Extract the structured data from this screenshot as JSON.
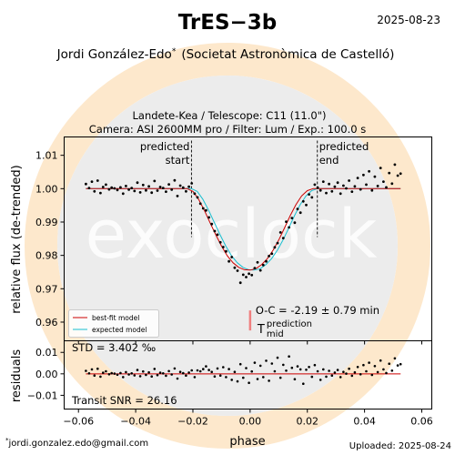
{
  "header": {
    "title": "TrES−3b",
    "date": "2025-08-23",
    "author": "Jordi González-Edo",
    "author_mark": "*",
    "affiliation": "(Societat Astronòmica de Castelló)"
  },
  "observation": {
    "line1": "Landete-Kea / Telescope: C11 (11.0\")",
    "line2": "Camera: ASI 2600MM pro / Filter: Lum / Exp.: 100.0 s"
  },
  "footer": {
    "email_mark": "*",
    "email": "jordi.gonzalez.edo@gmail.com",
    "uploaded": "Uploaded: 2025-08-24"
  },
  "watermark": {
    "text": "exoclock",
    "color": "#fde6c4"
  },
  "colors": {
    "data": "#000000",
    "best_fit": "#cc0000",
    "expected": "#17becf",
    "prediction_bar": "#f08080",
    "residual_line": "#cc0000",
    "watermark_disc": "#eeeeee"
  },
  "chart_data": [
    {
      "type": "scatter",
      "name": "light-curve",
      "ylabel": "relative flux (de-trended)",
      "xlim": [
        -0.065,
        0.0635
      ],
      "ylim": [
        0.9544,
        1.0155
      ],
      "xticks": [
        -0.06,
        -0.04,
        -0.02,
        0.0,
        0.02,
        0.04,
        0.06
      ],
      "yticks": [
        0.96,
        0.97,
        0.98,
        0.99,
        1.0,
        1.01
      ],
      "ytick_labels": [
        "0.96",
        "0.97",
        "0.98",
        "0.99",
        "1.00",
        "1.01"
      ],
      "grid": false,
      "legend": {
        "placement": "bottom-left",
        "entries": [
          "best-fit model",
          "expected model"
        ]
      },
      "predicted_start": {
        "x": -0.0205,
        "label_line1": "predicted",
        "label_line2": "start"
      },
      "predicted_end": {
        "x": 0.0235,
        "label_line1": "predicted",
        "label_line2": "end"
      },
      "prediction_marker": {
        "x": 0.0,
        "y_range": [
          0.9575,
          0.9635
        ]
      },
      "oc_annotation": "O-C = -2.19 ± 0.79 min",
      "tmid_label": "T",
      "tmid_sup": "prediction",
      "tmid_sub": "mid",
      "x": [
        -0.0574,
        -0.0563,
        -0.0553,
        -0.0544,
        -0.0533,
        -0.0523,
        -0.0514,
        -0.0504,
        -0.0493,
        -0.0484,
        -0.0474,
        -0.0464,
        -0.0453,
        -0.0444,
        -0.0434,
        -0.0424,
        -0.0414,
        -0.0404,
        -0.0394,
        -0.0384,
        -0.0374,
        -0.0364,
        -0.0354,
        -0.0344,
        -0.0334,
        -0.0324,
        -0.0314,
        -0.0304,
        -0.0294,
        -0.0284,
        -0.0274,
        -0.0264,
        -0.0254,
        -0.0244,
        -0.0234,
        -0.0224,
        -0.0214,
        -0.0204,
        -0.0194,
        -0.0184,
        -0.0174,
        -0.0164,
        -0.0154,
        -0.0144,
        -0.0134,
        -0.0124,
        -0.0114,
        -0.0104,
        -0.0094,
        -0.0084,
        -0.0074,
        -0.0064,
        -0.0054,
        -0.0044,
        -0.0034,
        -0.0024,
        -0.0014,
        -0.0004,
        0.0006,
        0.0016,
        0.0026,
        0.0036,
        0.0046,
        0.0056,
        0.0066,
        0.0076,
        0.0086,
        0.0096,
        0.0106,
        0.0116,
        0.0126,
        0.0136,
        0.0146,
        0.0156,
        0.0166,
        0.0176,
        0.0186,
        0.0196,
        0.0206,
        0.0216,
        0.0226,
        0.0236,
        0.0246,
        0.0256,
        0.0266,
        0.0276,
        0.0286,
        0.0296,
        0.0306,
        0.0316,
        0.0326,
        0.0336,
        0.0346,
        0.0356,
        0.0366,
        0.0376,
        0.0386,
        0.0396,
        0.0406,
        0.0416,
        0.0426,
        0.0436,
        0.0446,
        0.0456,
        0.0466,
        0.0476,
        0.0486,
        0.0496,
        0.0506,
        0.0516,
        0.0526
      ],
      "y": [
        1.0014,
        1.0002,
        1.0021,
        0.9992,
        1.0024,
        0.9987,
        1.0005,
        1.0012,
        0.9998,
        1.0003,
        1.0001,
        0.9996,
        1.0004,
        0.9985,
        1.0008,
        0.9997,
        1.0002,
        0.9993,
        1.0018,
        0.9989,
        1.0011,
        0.9995,
        1.0007,
        0.9988,
        1.0023,
        0.9994,
        1.0005,
        1.0002,
        0.9991,
        1.0013,
        0.9997,
        1.0025,
        0.9978,
        1.0009,
        1.0003,
        0.9992,
        1.0006,
        1.0016,
        0.9985,
        0.9974,
        0.9955,
        0.9941,
        0.9935,
        0.9914,
        0.9894,
        0.9873,
        0.9862,
        0.9839,
        0.9825,
        0.9812,
        0.9782,
        0.9795,
        0.9763,
        0.9754,
        0.9718,
        0.9742,
        0.9735,
        0.9745,
        0.9741,
        0.9762,
        0.9779,
        0.9755,
        0.9771,
        0.9782,
        0.9798,
        0.9805,
        0.9824,
        0.9837,
        0.9869,
        0.9852,
        0.9901,
        0.9884,
        0.9912,
        0.9898,
        0.9939,
        0.9928,
        0.9962,
        0.9951,
        0.9983,
        0.9974,
        1.0012,
        1.0003,
        0.9995,
        1.0021,
        0.9987,
        1.0014,
        0.9992,
        1.0006,
        1.0018,
        0.9985,
        1.0009,
        1.0001,
        1.0024,
        0.9991,
        1.0007,
        1.0032,
        0.9998,
        1.0041,
        1.0012,
        1.0052,
        0.9995,
        1.0036,
        1.0008,
        1.0062,
        1.0021,
        1.0004,
        1.0047,
        1.0015,
        1.0072,
        1.0039,
        1.0045
      ],
      "best_fit": {
        "x": [
          -0.0574,
          -0.022,
          -0.02,
          -0.018,
          -0.016,
          -0.014,
          -0.012,
          -0.01,
          -0.008,
          -0.006,
          -0.004,
          -0.002,
          0.0,
          0.002,
          0.004,
          0.006,
          0.008,
          0.01,
          0.012,
          0.014,
          0.016,
          0.018,
          0.02,
          0.022,
          0.0526
        ],
        "y": [
          1.0,
          1.0,
          0.9992,
          0.9968,
          0.9935,
          0.9898,
          0.9862,
          0.9828,
          0.9799,
          0.9778,
          0.9764,
          0.9757,
          0.9756,
          0.976,
          0.9772,
          0.979,
          0.9815,
          0.9846,
          0.9882,
          0.9919,
          0.9952,
          0.9978,
          0.9994,
          1.0,
          1.0
        ]
      },
      "expected_model": {
        "x": [
          -0.0574,
          -0.0205,
          -0.0185,
          -0.0165,
          -0.0145,
          -0.0125,
          -0.0105,
          -0.0085,
          -0.0065,
          -0.0045,
          -0.0025,
          -0.0005,
          0.0015,
          0.0035,
          0.0055,
          0.0075,
          0.0095,
          0.0115,
          0.0135,
          0.0155,
          0.0175,
          0.0195,
          0.0215,
          0.0235,
          0.0526
        ],
        "y": [
          1.0,
          1.0,
          0.9992,
          0.9968,
          0.9935,
          0.9898,
          0.9862,
          0.9828,
          0.9799,
          0.9778,
          0.9764,
          0.9757,
          0.9756,
          0.976,
          0.9772,
          0.979,
          0.9815,
          0.9846,
          0.9882,
          0.9919,
          0.9952,
          0.9978,
          0.9994,
          1.0,
          1.0
        ]
      }
    },
    {
      "type": "scatter",
      "name": "residuals",
      "xlabel": "phase",
      "ylabel": "residuals",
      "xlim": [
        -0.065,
        0.0635
      ],
      "ylim": [
        -0.0164,
        0.0154
      ],
      "xticks": [
        -0.06,
        -0.04,
        -0.02,
        0.0,
        0.02,
        0.04,
        0.06
      ],
      "xtick_labels": [
        "−0.06",
        "−0.04",
        "−0.02",
        "0.00",
        "0.02",
        "0.04",
        "0.06"
      ],
      "yticks": [
        -0.01,
        0.0,
        0.01
      ],
      "ytick_labels": [
        "−0.01",
        "0.00",
        "0.01"
      ],
      "grid": false,
      "zero_line": 0.0,
      "std_text": "STD = 3.402 ‰",
      "snr_text": "Transit SNR = 26.16",
      "x": [
        -0.0574,
        -0.0563,
        -0.0553,
        -0.0544,
        -0.0533,
        -0.0523,
        -0.0514,
        -0.0504,
        -0.0493,
        -0.0484,
        -0.0474,
        -0.0464,
        -0.0453,
        -0.0444,
        -0.0434,
        -0.0424,
        -0.0414,
        -0.0404,
        -0.0394,
        -0.0384,
        -0.0374,
        -0.0364,
        -0.0354,
        -0.0344,
        -0.0334,
        -0.0324,
        -0.0314,
        -0.0304,
        -0.0294,
        -0.0284,
        -0.0274,
        -0.0264,
        -0.0254,
        -0.0244,
        -0.0234,
        -0.0224,
        -0.0214,
        -0.0204,
        -0.0194,
        -0.0184,
        -0.0174,
        -0.0164,
        -0.0154,
        -0.0144,
        -0.0134,
        -0.0124,
        -0.0114,
        -0.0104,
        -0.0094,
        -0.0084,
        -0.0074,
        -0.0064,
        -0.0054,
        -0.0044,
        -0.0034,
        -0.0024,
        -0.0014,
        -0.0004,
        0.0006,
        0.0016,
        0.0026,
        0.0036,
        0.0046,
        0.0056,
        0.0066,
        0.0076,
        0.0086,
        0.0096,
        0.0106,
        0.0116,
        0.0126,
        0.0136,
        0.0146,
        0.0156,
        0.0166,
        0.0176,
        0.0186,
        0.0196,
        0.0206,
        0.0216,
        0.0226,
        0.0236,
        0.0246,
        0.0256,
        0.0266,
        0.0276,
        0.0286,
        0.0296,
        0.0306,
        0.0316,
        0.0326,
        0.0336,
        0.0346,
        0.0356,
        0.0366,
        0.0376,
        0.0386,
        0.0396,
        0.0406,
        0.0416,
        0.0426,
        0.0436,
        0.0446,
        0.0456,
        0.0466,
        0.0476,
        0.0486,
        0.0496,
        0.0506,
        0.0516,
        0.0526
      ],
      "y": [
        0.0014,
        0.0002,
        0.0021,
        -0.0008,
        0.0024,
        -0.0013,
        0.0005,
        0.0012,
        -0.0002,
        0.0003,
        0.0001,
        -0.0004,
        0.0004,
        -0.0015,
        0.0008,
        -0.0003,
        0.0002,
        -0.0007,
        0.0018,
        -0.0011,
        0.0011,
        -0.0005,
        0.0007,
        -0.0012,
        0.0023,
        -0.0006,
        0.0005,
        0.0002,
        -0.0009,
        0.0013,
        -0.0003,
        0.0025,
        -0.0022,
        0.0009,
        0.0003,
        -0.0008,
        0.0006,
        0.0016,
        -0.0015,
        0.0016,
        0.0012,
        0.0022,
        0.0035,
        0.0018,
        0.0009,
        -0.0012,
        0.0025,
        -0.0008,
        0.0031,
        -0.0015,
        0.0022,
        -0.0028,
        0.0009,
        -0.0035,
        0.0045,
        -0.0018,
        0.0027,
        -0.0042,
        0.0011,
        0.0052,
        -0.0024,
        0.0038,
        -0.0015,
        0.0061,
        -0.0032,
        0.0048,
        0.0012,
        0.0075,
        -0.0018,
        0.0042,
        0.0015,
        0.0081,
        0.0028,
        -0.0025,
        0.0035,
        0.0021,
        -0.0046,
        0.0019,
        0.0032,
        -0.0014,
        0.0041,
        0.0012,
        -0.0028,
        0.0021,
        -0.0013,
        0.0014,
        -0.0008,
        0.0006,
        0.0018,
        -0.0015,
        0.0009,
        0.0001,
        0.0024,
        -0.0009,
        0.0007,
        0.0032,
        -0.0002,
        0.0041,
        0.0012,
        0.0052,
        -0.0005,
        0.0036,
        0.0008,
        0.0062,
        0.0021,
        0.0004,
        0.0047,
        0.0015,
        0.0072,
        0.0039,
        0.0045
      ]
    }
  ]
}
